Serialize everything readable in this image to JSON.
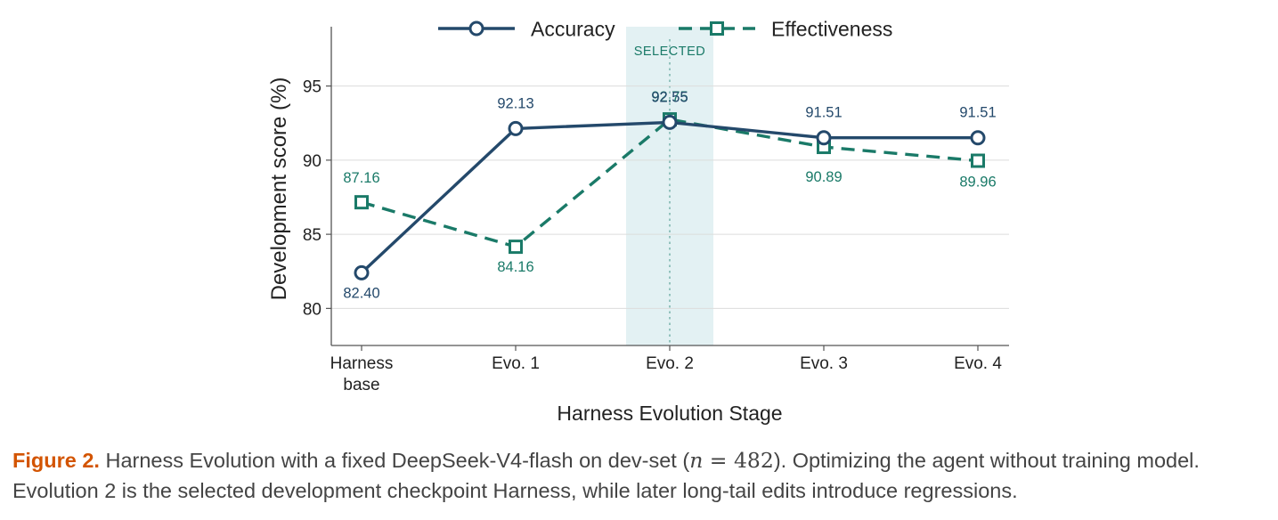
{
  "chart_data": {
    "type": "line",
    "categories": [
      "Harness base",
      "Evo. 1",
      "Evo. 2",
      "Evo. 3",
      "Evo. 4"
    ],
    "category_lines": [
      [
        "Harness",
        "base"
      ],
      [
        "Evo. 1"
      ],
      [
        "Evo. 2"
      ],
      [
        "Evo. 3"
      ],
      [
        "Evo. 4"
      ]
    ],
    "series": [
      {
        "name": "Accuracy",
        "values": [
          82.4,
          92.13,
          92.55,
          91.51,
          91.51
        ],
        "labels": [
          "82.40",
          "92.13",
          "92.55",
          "91.51",
          "91.51"
        ],
        "color": "#24496b",
        "marker": "circle",
        "linestyle": "solid"
      },
      {
        "name": "Effectiveness",
        "values": [
          87.16,
          84.16,
          92.75,
          90.89,
          89.96
        ],
        "labels": [
          "87.16",
          "84.16",
          "92.75",
          "90.89",
          "89.96"
        ],
        "color": "#1a7a68",
        "marker": "square",
        "linestyle": "dashed"
      }
    ],
    "xlabel": "Harness Evolution Stage",
    "ylabel": "Development score (%)",
    "ylim": [
      77.5,
      99
    ],
    "yticks": [
      80,
      85,
      90,
      95
    ],
    "grid": true,
    "legend_placement": "top-center",
    "highlight": {
      "category": "Evo. 2",
      "label": "SELECTED",
      "color": "#e3f1f3"
    }
  },
  "caption": {
    "figure_label": "Figure 2.",
    "text_before": " Harness Evolution with a fixed DeepSeek-V4-flash on dev-set (",
    "math_n": "n",
    "math_eq": " = 482",
    "text_after": "). Optimizing the agent without training model. Evolution 2 is the selected development checkpoint Harness, while later long-tail edits introduce regressions."
  }
}
